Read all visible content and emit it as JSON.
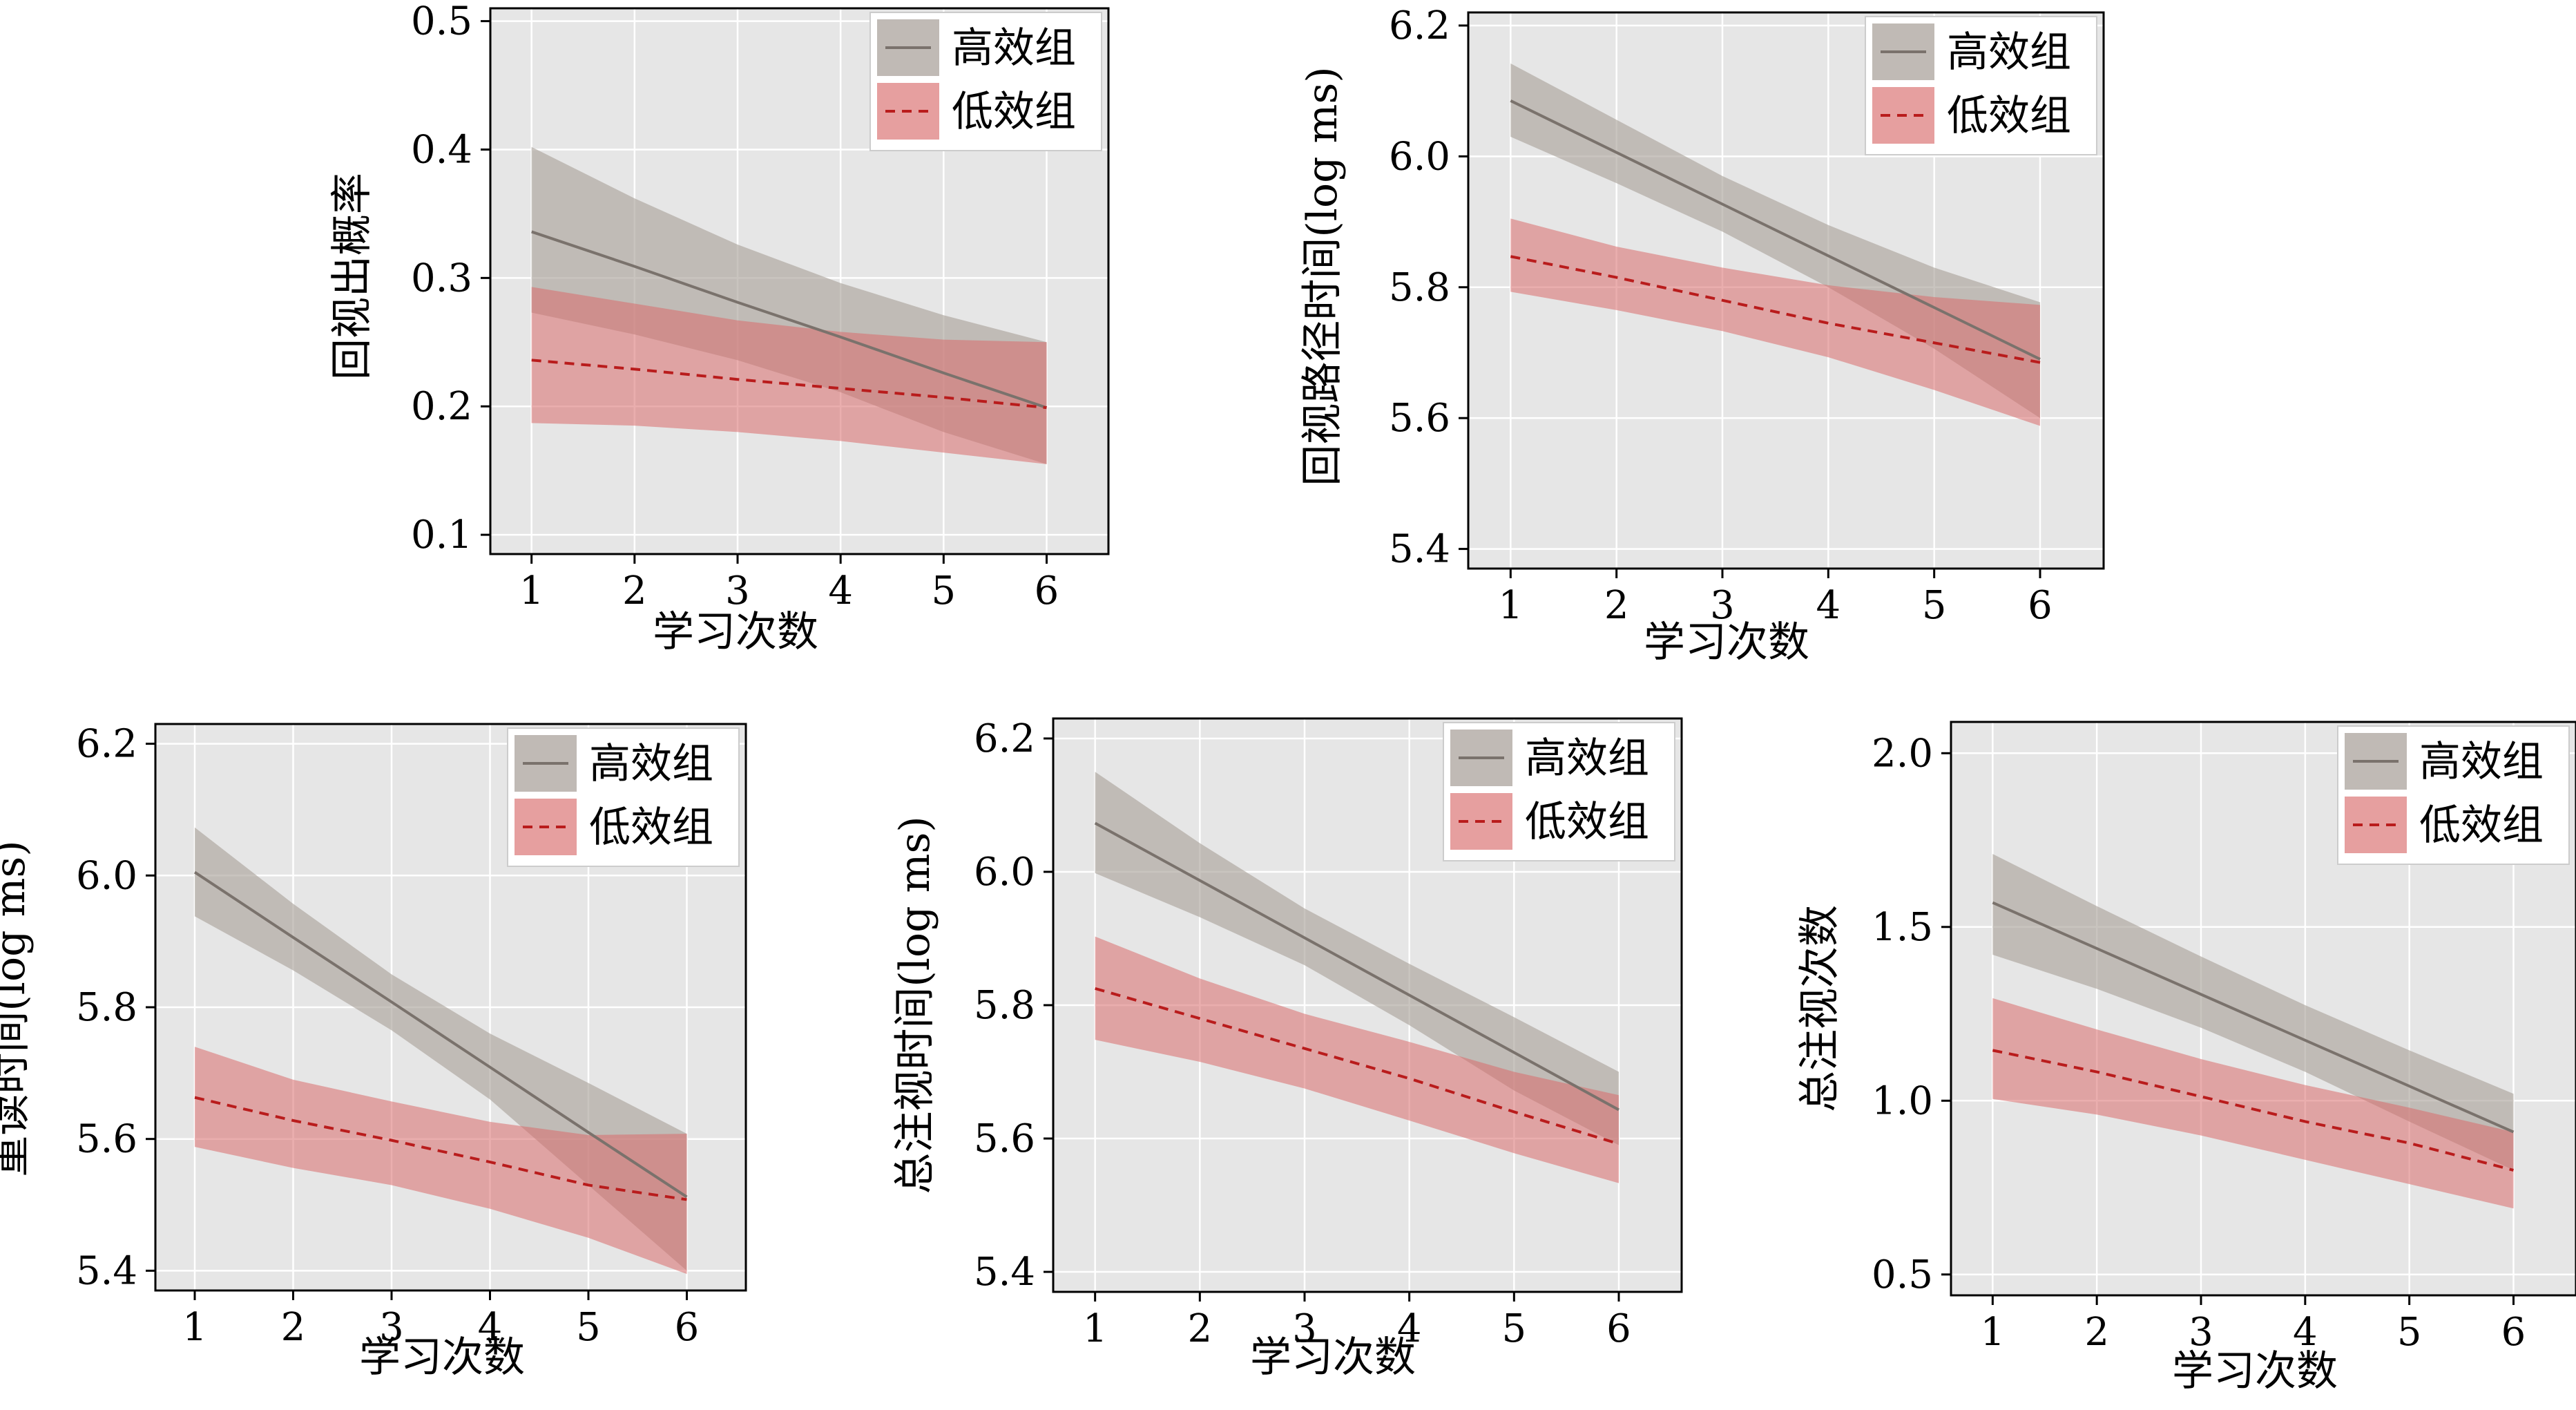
{
  "chart_data": [
    {
      "type": "line",
      "xlabel": "学习次数",
      "ylabel": "回视出概率",
      "x": [
        1,
        2,
        3,
        4,
        5,
        6
      ],
      "xlim": [
        0.6,
        6.6
      ],
      "ylim": [
        0.085,
        0.51
      ],
      "yticks": [
        0.1,
        0.2,
        0.3,
        0.4,
        0.5
      ],
      "ytick_labels": [
        "0.1",
        "0.2",
        "0.3",
        "0.4",
        "0.5"
      ],
      "xtick_labels": [
        "1",
        "2",
        "3",
        "4",
        "5",
        "6"
      ],
      "grid": true,
      "legend_position": "top-right",
      "series": [
        {
          "name": "高效组",
          "style": "solid",
          "values": [
            0.336,
            0.309,
            0.281,
            0.254,
            0.226,
            0.199
          ],
          "ci_lower": [
            0.273,
            0.256,
            0.236,
            0.211,
            0.18,
            0.155
          ],
          "ci_upper": [
            0.402,
            0.362,
            0.326,
            0.296,
            0.271,
            0.25
          ]
        },
        {
          "name": "低效组",
          "style": "dashed",
          "values": [
            0.236,
            0.229,
            0.221,
            0.214,
            0.207,
            0.199
          ],
          "ci_lower": [
            0.187,
            0.185,
            0.18,
            0.173,
            0.164,
            0.155
          ],
          "ci_upper": [
            0.293,
            0.28,
            0.267,
            0.258,
            0.252,
            0.25
          ]
        }
      ]
    },
    {
      "type": "line",
      "xlabel": "学习次数",
      "ylabel": "回视路径时间(log ms)",
      "x": [
        1,
        2,
        3,
        4,
        5,
        6
      ],
      "xlim": [
        0.6,
        6.6
      ],
      "ylim": [
        5.37,
        6.22
      ],
      "yticks": [
        5.4,
        5.6,
        5.8,
        6.0,
        6.2
      ],
      "ytick_labels": [
        "5.4",
        "5.6",
        "5.8",
        "6.0",
        "6.2"
      ],
      "xtick_labels": [
        "1",
        "2",
        "3",
        "4",
        "5",
        "6"
      ],
      "grid": true,
      "legend_position": "top-right",
      "series": [
        {
          "name": "高效组",
          "style": "solid",
          "values": [
            6.085,
            6.006,
            5.927,
            5.848,
            5.769,
            5.69
          ],
          "ci_lower": [
            6.03,
            5.959,
            5.885,
            5.8,
            5.706,
            5.6
          ],
          "ci_upper": [
            6.142,
            6.056,
            5.97,
            5.895,
            5.83,
            5.777
          ]
        },
        {
          "name": "低效组",
          "style": "dashed",
          "values": [
            5.847,
            5.815,
            5.78,
            5.745,
            5.715,
            5.685
          ],
          "ci_lower": [
            5.793,
            5.765,
            5.733,
            5.693,
            5.643,
            5.588
          ],
          "ci_upper": [
            5.905,
            5.862,
            5.83,
            5.803,
            5.785,
            5.773
          ]
        }
      ]
    },
    {
      "type": "line",
      "xlabel": "学习次数",
      "ylabel": "重读时间(log ms)",
      "x": [
        1,
        2,
        3,
        4,
        5,
        6
      ],
      "xlim": [
        0.6,
        6.6
      ],
      "ylim": [
        5.37,
        6.23
      ],
      "yticks": [
        5.4,
        5.6,
        5.8,
        6.0,
        6.2
      ],
      "ytick_labels": [
        "5.4",
        "5.6",
        "5.8",
        "6.0",
        "6.2"
      ],
      "xtick_labels": [
        "1",
        "2",
        "3",
        "4",
        "5",
        "6"
      ],
      "grid": true,
      "legend_position": "top-right",
      "series": [
        {
          "name": "高效组",
          "style": "solid",
          "values": [
            6.005,
            5.906,
            5.808,
            5.709,
            5.61,
            5.512
          ],
          "ci_lower": [
            5.938,
            5.856,
            5.765,
            5.66,
            5.53,
            5.4
          ],
          "ci_upper": [
            6.073,
            5.957,
            5.85,
            5.76,
            5.685,
            5.608
          ]
        },
        {
          "name": "低效组",
          "style": "dashed",
          "values": [
            5.663,
            5.628,
            5.598,
            5.565,
            5.53,
            5.508
          ],
          "ci_lower": [
            5.588,
            5.556,
            5.53,
            5.494,
            5.45,
            5.395
          ],
          "ci_upper": [
            5.74,
            5.69,
            5.657,
            5.626,
            5.606,
            5.608
          ]
        }
      ]
    },
    {
      "type": "line",
      "xlabel": "学习次数",
      "ylabel": "总注视时间(log ms)",
      "x": [
        1,
        2,
        3,
        4,
        5,
        6
      ],
      "xlim": [
        0.6,
        6.6
      ],
      "ylim": [
        5.37,
        6.23
      ],
      "yticks": [
        5.4,
        5.6,
        5.8,
        6.0,
        6.2
      ],
      "ytick_labels": [
        "5.4",
        "5.6",
        "5.8",
        "6.0",
        "6.2"
      ],
      "xtick_labels": [
        "1",
        "2",
        "3",
        "4",
        "5",
        "6"
      ],
      "grid": true,
      "legend_position": "top-right",
      "series": [
        {
          "name": "高效组",
          "style": "solid",
          "values": [
            6.073,
            5.987,
            5.901,
            5.815,
            5.729,
            5.643
          ],
          "ci_lower": [
            5.998,
            5.932,
            5.86,
            5.77,
            5.672,
            5.59
          ],
          "ci_upper": [
            6.15,
            6.043,
            5.945,
            5.862,
            5.782,
            5.7
          ]
        },
        {
          "name": "低效组",
          "style": "dashed",
          "values": [
            5.825,
            5.78,
            5.735,
            5.69,
            5.64,
            5.592
          ],
          "ci_lower": [
            5.748,
            5.715,
            5.675,
            5.627,
            5.578,
            5.533
          ],
          "ci_upper": [
            5.903,
            5.84,
            5.787,
            5.745,
            5.7,
            5.665
          ]
        }
      ]
    },
    {
      "type": "line",
      "xlabel": "学习次数",
      "ylabel": "总注视次数",
      "x": [
        1,
        2,
        3,
        4,
        5,
        6
      ],
      "xlim": [
        0.6,
        6.6
      ],
      "ylim": [
        0.44,
        2.09
      ],
      "yticks": [
        0.5,
        1.0,
        1.5,
        2.0
      ],
      "ytick_labels": [
        "0.5",
        "1.0",
        "1.5",
        "2.0"
      ],
      "xtick_labels": [
        "1",
        "2",
        "3",
        "4",
        "5",
        "6"
      ],
      "grid": true,
      "legend_position": "top-right",
      "series": [
        {
          "name": "高效组",
          "style": "solid",
          "values": [
            1.57,
            1.438,
            1.306,
            1.174,
            1.042,
            0.91
          ],
          "ci_lower": [
            1.42,
            1.322,
            1.21,
            1.083,
            0.94,
            0.8
          ],
          "ci_upper": [
            1.71,
            1.56,
            1.415,
            1.275,
            1.145,
            1.02
          ]
        },
        {
          "name": "低效组",
          "style": "dashed",
          "values": [
            1.145,
            1.083,
            1.012,
            0.94,
            0.878,
            0.8
          ],
          "ci_lower": [
            1.005,
            0.96,
            0.9,
            0.83,
            0.76,
            0.69
          ],
          "ci_upper": [
            1.295,
            1.205,
            1.12,
            1.045,
            0.98,
            0.91
          ]
        }
      ]
    }
  ],
  "colors": {
    "plot_bg": "#e6e6e6",
    "grid": "#ffffff",
    "axis": "#000000",
    "high_line": "#7a726c",
    "high_band": "#a89f98",
    "low_line": "#b91c1c",
    "low_band": "#d96b6b"
  }
}
